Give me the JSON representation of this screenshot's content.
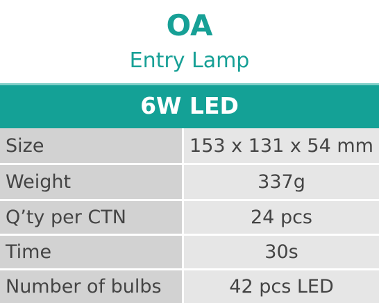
{
  "header": {
    "title": "OA",
    "subtitle": "Entry Lamp"
  },
  "table": {
    "heading": "6W LED",
    "rows": [
      [
        "Size",
        "153 x 131 x 54 mm"
      ],
      [
        "Weight",
        "337g"
      ],
      [
        "Q’ty per CTN",
        "24 pcs"
      ],
      [
        "Time",
        "30s"
      ],
      [
        "Number of bulbs",
        "42 pcs LED"
      ]
    ]
  }
}
